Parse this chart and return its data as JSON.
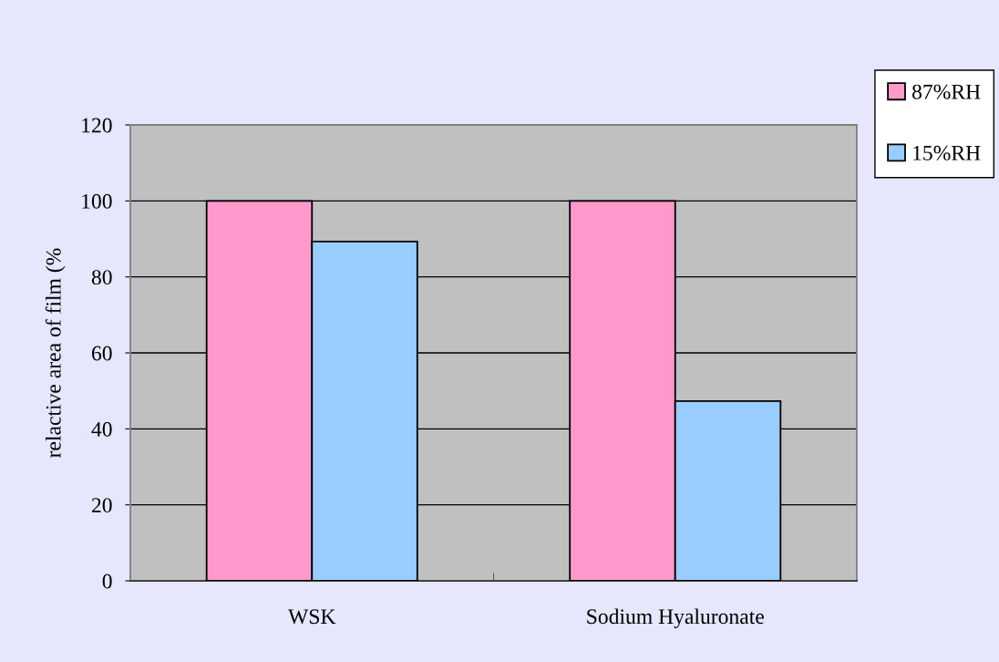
{
  "chart_data": {
    "type": "bar",
    "ylabel": "relactive area of film (%",
    "categories": [
      "WSK",
      "Sodium Hyaluronate"
    ],
    "series": [
      {
        "name": "87%RH",
        "color": "#ff99cc",
        "values": [
          100,
          100
        ]
      },
      {
        "name": "15%RH",
        "color": "#99ccff",
        "values": [
          89.3,
          47.3
        ]
      }
    ],
    "ylim": [
      0,
      120
    ],
    "yticks": [
      0,
      20,
      40,
      60,
      80,
      100,
      120
    ],
    "grid": "y",
    "legend": "top right"
  }
}
